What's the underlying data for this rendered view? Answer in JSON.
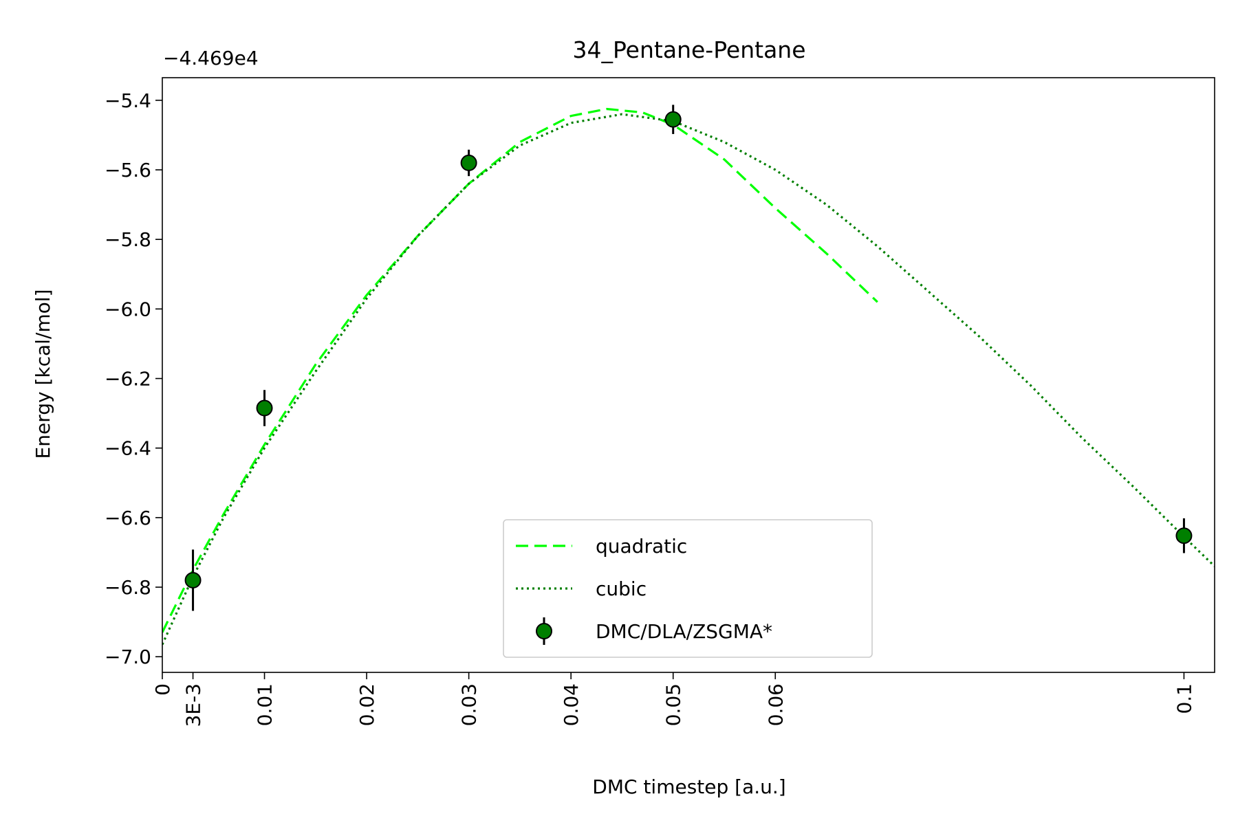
{
  "chart_data": {
    "type": "line",
    "title": "34_Pentane-Pentane",
    "xlabel": "DMC timestep [a.u.]",
    "ylabel": "Energy [kcal/mol]",
    "y_offset_label": "−4.469e4",
    "xlim": [
      0,
      0.103
    ],
    "ylim": [
      -7.045,
      -5.335
    ],
    "x_ticks": [
      {
        "value": 0,
        "label": "0"
      },
      {
        "value": 0.003,
        "label": "3E-3"
      },
      {
        "value": 0.01,
        "label": "0.01"
      },
      {
        "value": 0.02,
        "label": "0.02"
      },
      {
        "value": 0.03,
        "label": "0.03"
      },
      {
        "value": 0.04,
        "label": "0.04"
      },
      {
        "value": 0.05,
        "label": "0.05"
      },
      {
        "value": 0.06,
        "label": "0.06"
      },
      {
        "value": 0.1,
        "label": "0.1"
      }
    ],
    "y_ticks": [
      {
        "value": -5.4,
        "label": "−5.4"
      },
      {
        "value": -5.6,
        "label": "−5.6"
      },
      {
        "value": -5.8,
        "label": "−5.8"
      },
      {
        "value": -6.0,
        "label": "−6.0"
      },
      {
        "value": -6.2,
        "label": "−6.2"
      },
      {
        "value": -6.4,
        "label": "−6.4"
      },
      {
        "value": -6.6,
        "label": "−6.6"
      },
      {
        "value": -6.8,
        "label": "−6.8"
      },
      {
        "value": -7.0,
        "label": "−7.0"
      }
    ],
    "grid": false,
    "legend_position": "bottom-center",
    "series": [
      {
        "name": "quadratic",
        "kind": "line",
        "style": "dashed",
        "color": "#00ff00",
        "x": [
          0,
          0.003,
          0.006,
          0.01,
          0.015,
          0.02,
          0.025,
          0.03,
          0.035,
          0.04,
          0.0435,
          0.047,
          0.05,
          0.055,
          0.06,
          0.065,
          0.07
        ],
        "y": [
          -6.93,
          -6.75,
          -6.59,
          -6.39,
          -6.16,
          -5.96,
          -5.79,
          -5.64,
          -5.52,
          -5.445,
          -5.425,
          -5.435,
          -5.47,
          -5.57,
          -5.71,
          -5.84,
          -5.98
        ]
      },
      {
        "name": "cubic",
        "kind": "line",
        "style": "dotted",
        "color": "#007f00",
        "x": [
          0,
          0.003,
          0.006,
          0.01,
          0.015,
          0.02,
          0.025,
          0.03,
          0.035,
          0.04,
          0.045,
          0.05,
          0.055,
          0.06,
          0.065,
          0.07,
          0.075,
          0.08,
          0.085,
          0.09,
          0.095,
          0.1,
          0.103
        ],
        "y": [
          -6.965,
          -6.77,
          -6.6,
          -6.4,
          -6.18,
          -5.97,
          -5.79,
          -5.64,
          -5.53,
          -5.465,
          -5.44,
          -5.46,
          -5.52,
          -5.6,
          -5.7,
          -5.82,
          -5.95,
          -6.08,
          -6.22,
          -6.37,
          -6.51,
          -6.655,
          -6.74
        ]
      },
      {
        "name": "DMC/DLA/ZSGMA*",
        "kind": "errorbar",
        "color": "#007f00",
        "x": [
          0.003,
          0.01,
          0.03,
          0.05,
          0.1
        ],
        "y": [
          -6.78,
          -6.285,
          -5.58,
          -5.455,
          -6.652
        ],
        "err": [
          0.088,
          0.052,
          0.038,
          0.042,
          0.05
        ]
      }
    ]
  }
}
